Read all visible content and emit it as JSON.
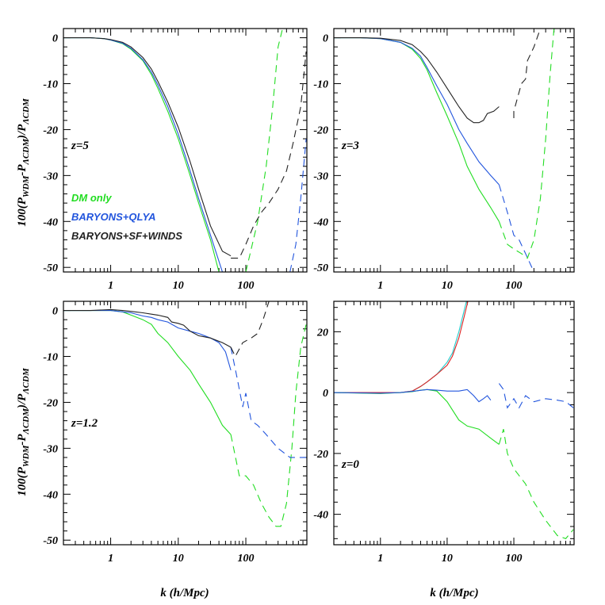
{
  "figure": {
    "ylabel_main": "100(P",
    "ylabel_sub1": "WDM",
    "ylabel_mid": "-P",
    "ylabel_sub2": "ΛCDM",
    "ylabel_mid2": ")/P",
    "ylabel_sub3": "ΛCDM",
    "xlabel": "k (h/Mpc)"
  },
  "colors": {
    "dm_only": "#22dd22",
    "baryons_qlya": "#2255dd",
    "baryons_sf_winds": "#222222",
    "red": "#dd2222",
    "cyan": "#22cccc"
  },
  "legend": [
    {
      "label": "DM only",
      "color": "#22dd22"
    },
    {
      "label": "BARYONS+QLYA",
      "color": "#2255dd"
    },
    {
      "label": "BARYONS+SF+WINDS",
      "color": "#222222"
    }
  ],
  "chart_data": [
    {
      "type": "line",
      "panel_label": "z=5",
      "xscale": "log",
      "xlim": [
        0.2,
        800
      ],
      "ylim": [
        -51,
        2
      ],
      "xticks": [
        1,
        10,
        100
      ],
      "xtick_labels": [
        "1",
        "10",
        "100"
      ],
      "yticks": [
        0,
        -10,
        -20,
        -30,
        -40,
        -50
      ],
      "ytick_labels": [
        "0",
        "-10",
        "-20",
        "-30",
        "-40",
        "-50"
      ],
      "show_xtick_labels": true,
      "series": [
        {
          "name": "DM only",
          "color": "#22dd22",
          "dashed": false,
          "x": [
            0.2,
            0.5,
            0.8,
            1,
            1.5,
            2,
            3,
            4,
            5,
            7,
            10,
            15,
            20,
            30,
            40
          ],
          "y": [
            0,
            0,
            -0.2,
            -0.5,
            -1.3,
            -2.5,
            -5,
            -8,
            -11,
            -16,
            -22,
            -30,
            -36,
            -44,
            -51
          ]
        },
        {
          "name": "DM only",
          "color": "#22dd22",
          "dashed": true,
          "x": [
            100,
            150,
            200,
            250,
            300,
            350
          ],
          "y": [
            -51,
            -40,
            -28,
            -15,
            -2,
            2
          ]
        },
        {
          "name": "BARYONS+QLYA",
          "color": "#2255dd",
          "dashed": false,
          "x": [
            0.2,
            0.5,
            0.8,
            1,
            1.5,
            2,
            3,
            4,
            5,
            7,
            10,
            15,
            20,
            30,
            45
          ],
          "y": [
            0,
            0,
            -0.2,
            -0.5,
            -1.2,
            -2.3,
            -4.8,
            -7.5,
            -10.3,
            -15,
            -21,
            -29,
            -35,
            -43,
            -51
          ]
        },
        {
          "name": "BARYONS+QLYA",
          "color": "#2255dd",
          "dashed": true,
          "x": [
            450,
            550,
            650,
            780
          ],
          "y": [
            -51,
            -45,
            -35,
            -22
          ]
        },
        {
          "name": "BARYONS+SF+WINDS",
          "color": "#222222",
          "dashed": false,
          "x": [
            0.2,
            0.5,
            0.8,
            1,
            1.5,
            2,
            3,
            4,
            5,
            7,
            10,
            15,
            20,
            30,
            45,
            60
          ],
          "y": [
            0,
            0,
            -0.2,
            -0.4,
            -1,
            -2,
            -4.3,
            -6.8,
            -9.5,
            -14,
            -19.5,
            -27,
            -33,
            -41,
            -46.5,
            -47.5
          ]
        },
        {
          "name": "BARYONS+SF+WINDS",
          "color": "#222222",
          "dashed": true,
          "x": [
            60,
            80,
            100,
            130,
            170,
            220,
            300,
            400,
            500,
            650,
            780
          ],
          "y": [
            -48,
            -48,
            -45,
            -41,
            -38,
            -36,
            -33,
            -29,
            -23,
            -15,
            -3
          ]
        }
      ]
    },
    {
      "type": "line",
      "panel_label": "z=3",
      "xscale": "log",
      "xlim": [
        0.2,
        800
      ],
      "ylim": [
        -51,
        2
      ],
      "xticks": [
        1,
        10,
        100
      ],
      "xtick_labels": [
        "1",
        "10",
        "100"
      ],
      "yticks": [
        0,
        -10,
        -20,
        -30,
        -40,
        -50
      ],
      "ytick_labels": [
        "0",
        "-10",
        "-20",
        "-30",
        "-40",
        "-50"
      ],
      "show_xtick_labels": true,
      "series": [
        {
          "name": "DM only",
          "color": "#22dd22",
          "dashed": false,
          "x": [
            0.2,
            0.5,
            1,
            2,
            3,
            4,
            5,
            7,
            10,
            15,
            20,
            30,
            45,
            60
          ],
          "y": [
            0,
            0,
            -0.2,
            -1,
            -2.5,
            -4.5,
            -7,
            -12,
            -17,
            -23,
            -28,
            -33,
            -37,
            -40
          ]
        },
        {
          "name": "DM only",
          "color": "#22dd22",
          "dashed": true,
          "x": [
            60,
            80,
            100,
            130,
            160,
            200,
            250,
            300,
            350,
            400
          ],
          "y": [
            -40,
            -45,
            -46,
            -47,
            -48,
            -44,
            -35,
            -22,
            -8,
            2
          ]
        },
        {
          "name": "BARYONS+QLYA",
          "color": "#2255dd",
          "dashed": false,
          "x": [
            0.2,
            0.5,
            1,
            2,
            3,
            4,
            5,
            7,
            10,
            15,
            20,
            30,
            45,
            60
          ],
          "y": [
            0,
            0,
            -0.2,
            -1,
            -2.3,
            -4,
            -6.5,
            -10.5,
            -14.5,
            -20,
            -23,
            -27,
            -30,
            -32
          ]
        },
        {
          "name": "BARYONS+QLYA",
          "color": "#2255dd",
          "dashed": true,
          "x": [
            60,
            80,
            100,
            120,
            150,
            200
          ],
          "y": [
            -32,
            -38,
            -43,
            -44,
            -47,
            -51
          ]
        },
        {
          "name": "BARYONS+SF+WINDS",
          "color": "#222222",
          "dashed": false,
          "x": [
            0.2,
            0.5,
            1,
            2,
            3,
            4,
            5,
            7,
            10,
            15,
            20,
            25,
            30,
            35,
            40,
            50,
            60
          ],
          "y": [
            0,
            0,
            -0.1,
            -0.6,
            -1.5,
            -3,
            -4.5,
            -7.5,
            -11,
            -15,
            -17.5,
            -18.5,
            -18.5,
            -18,
            -16.5,
            -16,
            -15
          ]
        },
        {
          "name": "BARYONS+SF+WINDS",
          "color": "#222222",
          "dashed": true,
          "x": [
            100,
            100,
            130,
            150,
            160,
            200,
            250
          ],
          "y": [
            -17.5,
            -16,
            -10,
            -9,
            -5,
            -2,
            2
          ]
        }
      ]
    },
    {
      "type": "line",
      "panel_label": "z=1.2",
      "xscale": "log",
      "xlim": [
        0.2,
        800
      ],
      "ylim": [
        -51,
        2
      ],
      "xticks": [
        1,
        10,
        100
      ],
      "xtick_labels": [
        "1",
        "10",
        "100"
      ],
      "yticks": [
        0,
        -10,
        -20,
        -30,
        -40,
        -50
      ],
      "ytick_labels": [
        "0",
        "-10",
        "-20",
        "-30",
        "-40",
        "-50"
      ],
      "show_xtick_labels": true,
      "series": [
        {
          "name": "DM only",
          "color": "#22dd22",
          "dashed": false,
          "x": [
            0.2,
            0.5,
            1,
            1.5,
            2,
            3,
            4,
            5,
            7,
            10,
            15,
            20,
            30,
            45,
            60
          ],
          "y": [
            0,
            0,
            0,
            -0.3,
            -1,
            -2,
            -3,
            -5,
            -7,
            -10,
            -13,
            -16,
            -20,
            -25,
            -27
          ]
        },
        {
          "name": "DM only",
          "color": "#22dd22",
          "dashed": true,
          "x": [
            60,
            80,
            100,
            130,
            170,
            220,
            280,
            330,
            400,
            480,
            550,
            650,
            780
          ],
          "y": [
            -27,
            -36,
            -36,
            -38,
            -42,
            -45,
            -47,
            -47,
            -42,
            -30,
            -18,
            -8,
            -3
          ]
        },
        {
          "name": "BARYONS+QLYA",
          "color": "#2255dd",
          "dashed": false,
          "x": [
            0.2,
            0.5,
            1,
            1.5,
            2,
            3,
            4,
            5,
            7,
            10,
            15,
            20,
            30,
            40,
            50,
            60
          ],
          "y": [
            0,
            0,
            0,
            -0.3,
            -0.5,
            -1.2,
            -1.5,
            -2,
            -2.5,
            -3.8,
            -4.5,
            -5,
            -6,
            -7,
            -9,
            -13
          ]
        },
        {
          "name": "BARYONS+QLYA",
          "color": "#2255dd",
          "dashed": true,
          "x": [
            60,
            75,
            90,
            100,
            120,
            150,
            200,
            300,
            450,
            600,
            780
          ],
          "y": [
            -8,
            -15,
            -21,
            -18,
            -24,
            -25,
            -27,
            -30,
            -32,
            -32,
            -32
          ]
        },
        {
          "name": "BARYONS+SF+WINDS",
          "color": "#222222",
          "dashed": false,
          "x": [
            0.2,
            0.5,
            1,
            1.5,
            2,
            3,
            4,
            5,
            7,
            8,
            10,
            12,
            15,
            20,
            30,
            45,
            60
          ],
          "y": [
            0,
            0,
            0.2,
            0,
            -0.2,
            -0.5,
            -0.8,
            -1,
            -1.5,
            -2.5,
            -2.8,
            -3.2,
            -4.5,
            -5.5,
            -6,
            -7,
            -8
          ]
        },
        {
          "name": "BARYONS+SF+WINDS",
          "color": "#222222",
          "dashed": true,
          "x": [
            60,
            70,
            90,
            120,
            150,
            180,
            220
          ],
          "y": [
            -8,
            -10,
            -7,
            -6,
            -5,
            -2,
            2
          ]
        }
      ]
    },
    {
      "type": "line",
      "panel_label": "z=0",
      "xscale": "log",
      "xlim": [
        0.2,
        800
      ],
      "ylim": [
        -50,
        30
      ],
      "xticks": [
        1,
        10,
        100
      ],
      "xtick_labels": [
        "1",
        "10",
        "100"
      ],
      "yticks": [
        20,
        0,
        -20,
        -40
      ],
      "ytick_labels": [
        "20",
        "0",
        "-20",
        "-40"
      ],
      "show_xtick_labels": true,
      "series": [
        {
          "name": "",
          "color": "#22cccc",
          "dashed": false,
          "x": [
            0.2,
            1,
            2,
            3,
            4,
            5,
            7,
            10,
            12,
            15,
            18,
            20
          ],
          "y": [
            0,
            0,
            0,
            0.5,
            2,
            3.5,
            6,
            10,
            13,
            20,
            27,
            31
          ]
        },
        {
          "name": "",
          "color": "#dd2222",
          "dashed": false,
          "x": [
            0.2,
            1,
            2,
            3,
            4,
            5,
            7,
            10,
            12,
            15,
            18,
            21
          ],
          "y": [
            0,
            0,
            0,
            0.5,
            2,
            3.5,
            6,
            9,
            12,
            18,
            25,
            31
          ]
        },
        {
          "name": "DM only",
          "color": "#22dd22",
          "dashed": false,
          "x": [
            0.2,
            1,
            2,
            3,
            4,
            5,
            7,
            10,
            15,
            20,
            30,
            45,
            60
          ],
          "y": [
            0,
            -0.3,
            0,
            0.3,
            0.8,
            1,
            0.5,
            -3,
            -9,
            -11,
            -12,
            -15,
            -17
          ]
        },
        {
          "name": "DM only",
          "color": "#22dd22",
          "dashed": true,
          "x": [
            60,
            70,
            80,
            100,
            150,
            200,
            300,
            450,
            600,
            780
          ],
          "y": [
            -17,
            -12,
            -20,
            -25,
            -30,
            -36,
            -42,
            -47,
            -48,
            -45
          ]
        },
        {
          "name": "BARYONS+QLYA",
          "color": "#2255dd",
          "dashed": false,
          "x": [
            0.2,
            1,
            2,
            3,
            5,
            7,
            10,
            15,
            20,
            25,
            30,
            35,
            40,
            45
          ],
          "y": [
            0,
            -0.2,
            0,
            0.4,
            1,
            0.8,
            0.5,
            0.5,
            1,
            -1,
            -3,
            -2,
            -1,
            -2.5
          ]
        },
        {
          "name": "BARYONS+QLYA",
          "color": "#2255dd",
          "dashed": true,
          "x": [
            60,
            70,
            80,
            100,
            120,
            150,
            200,
            300,
            450,
            600,
            780
          ],
          "y": [
            3,
            1,
            -5,
            -2,
            -5,
            -1,
            -3,
            -2,
            -2.5,
            -3,
            -5
          ]
        }
      ]
    }
  ]
}
